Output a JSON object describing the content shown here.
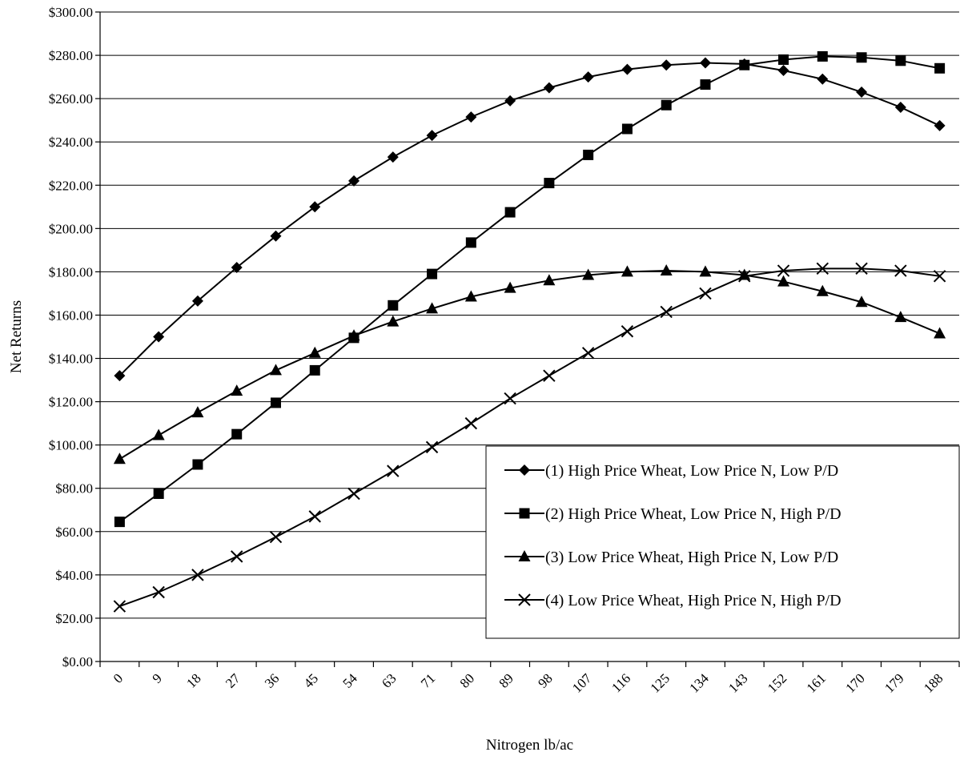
{
  "chart_data": {
    "type": "line",
    "title": "",
    "xlabel": "Nitrogen lb/ac",
    "ylabel": "Net Returns",
    "categories": [
      "0",
      "9",
      "18",
      "27",
      "36",
      "45",
      "54",
      "63",
      "71",
      "80",
      "89",
      "98",
      "107",
      "116",
      "125",
      "134",
      "143",
      "152",
      "161",
      "170",
      "179",
      "188"
    ],
    "ylim": [
      0,
      300
    ],
    "ytick_step": 20,
    "ytick_labels": [
      "$0.00",
      "$20.00",
      "$40.00",
      "$60.00",
      "$80.00",
      "$100.00",
      "$120.00",
      "$140.00",
      "$160.00",
      "$180.00",
      "$200.00",
      "$220.00",
      "$240.00",
      "$260.00",
      "$280.00",
      "$300.00"
    ],
    "grid": true,
    "legend_position": "bottom-right",
    "series": [
      {
        "name": "(1) High Price Wheat, Low Price N, Low P/D",
        "marker": "diamond",
        "values": [
          132,
          150,
          166.5,
          182,
          196.5,
          210,
          222,
          233,
          243,
          251.5,
          259,
          265,
          270,
          273.5,
          275.5,
          276.5,
          276,
          273,
          269,
          263,
          256,
          247.5
        ]
      },
      {
        "name": "(2) High Price Wheat, Low Price N, High P/D",
        "marker": "square",
        "values": [
          64.5,
          77.5,
          91,
          105,
          119.5,
          134.5,
          149.5,
          164.5,
          179,
          193.5,
          207.5,
          221,
          234,
          246,
          257,
          266.5,
          275.5,
          278,
          279.5,
          279,
          277.5,
          274
        ]
      },
      {
        "name": "(3) Low Price Wheat, High Price N, Low P/D",
        "marker": "triangle",
        "values": [
          93.5,
          104.5,
          115,
          125,
          134.5,
          142.5,
          150.5,
          157,
          163,
          168.5,
          172.5,
          176,
          178.5,
          180,
          180.5,
          180,
          178.5,
          175.5,
          171,
          166,
          159,
          151.5
        ]
      },
      {
        "name": "(4) Low Price Wheat, High Price N, High P/D",
        "marker": "x",
        "values": [
          25.5,
          32,
          40,
          48.5,
          57.5,
          67,
          77.5,
          88,
          99,
          110,
          121.5,
          132,
          142.5,
          152.5,
          161.5,
          170,
          178,
          180.5,
          181.5,
          181.5,
          180.5,
          178
        ]
      }
    ]
  }
}
